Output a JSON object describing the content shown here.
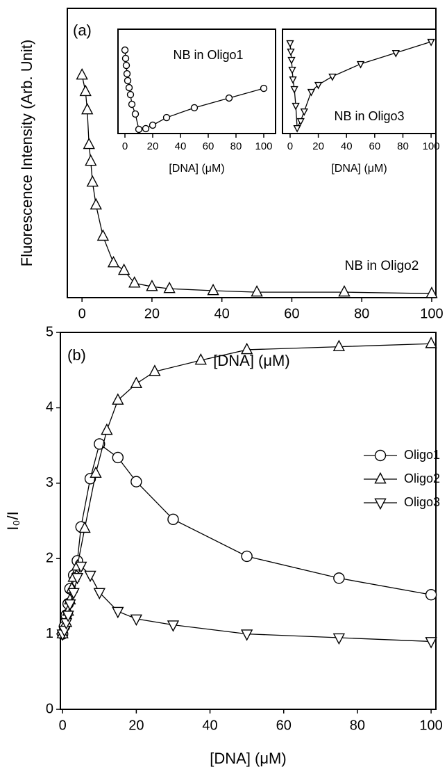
{
  "chart_data": [
    {
      "type": "line",
      "panel_label": "(a)",
      "xlabel": "[DNA] (μM)",
      "ylabel": "Fluorescence Intensity (Arb. Unit)",
      "annotation": "NB in Oligo2",
      "marker": "triangle-up",
      "color": "#000000",
      "x": [
        0,
        1,
        1.5,
        2,
        2.5,
        3,
        4,
        6,
        9,
        12,
        15,
        20,
        25,
        37.5,
        50,
        75,
        100
      ],
      "values": [
        76.9,
        71.2,
        64.9,
        52.9,
        47.1,
        39.9,
        32.0,
        21.2,
        12.0,
        9.4,
        5.0,
        3.8,
        3.1,
        2.4,
        1.9,
        1.9,
        1.4
      ],
      "xlim": [
        -4.2,
        101.2
      ],
      "xticks": [
        0,
        20,
        40,
        60,
        80,
        100
      ],
      "ylim": [
        0,
        100
      ]
    },
    {
      "type": "line",
      "xlabel": "[DNA] (μM)",
      "annotation": "NB in Oligo1",
      "marker": "circle",
      "color": "#000000",
      "x": [
        0,
        0.5,
        1,
        1.5,
        2,
        3,
        4,
        5,
        7.5,
        10,
        15,
        20,
        30,
        50,
        75,
        100
      ],
      "values": [
        80,
        72,
        65.3,
        57.3,
        50.7,
        44,
        37.3,
        28,
        18.7,
        4,
        4.7,
        8,
        15.3,
        24.7,
        34,
        43.3
      ],
      "xlim": [
        -5,
        108.5
      ],
      "xticks": [
        0,
        20,
        40,
        60,
        80,
        100
      ],
      "ylim": [
        0,
        100
      ]
    },
    {
      "type": "line",
      "xlabel": "[DNA] (μM)",
      "annotation": "NB in Oligo3",
      "marker": "triangle-down",
      "color": "#000000",
      "x": [
        0,
        0.5,
        1,
        1.5,
        2,
        3,
        4,
        5,
        7.5,
        10,
        15,
        20,
        30,
        50,
        75,
        100
      ],
      "values": [
        86.7,
        78.7,
        70.7,
        61.3,
        52,
        42.7,
        26.7,
        5.3,
        12,
        21.3,
        40,
        46.7,
        54.7,
        66.7,
        77.3,
        88
      ],
      "xlim": [
        -5.4,
        103.4
      ],
      "xticks": [
        0,
        20,
        40,
        60,
        80,
        100
      ],
      "ylim": [
        0,
        100
      ]
    },
    {
      "type": "line",
      "panel_label": "(b)",
      "xlabel": "[DNA] (μM)",
      "ylabel": "I₀/I",
      "legend": "center-right",
      "xlim": [
        -0.6,
        101.3
      ],
      "xticks": [
        0,
        20,
        40,
        60,
        80,
        100
      ],
      "ylim": [
        0,
        5
      ],
      "yticks": [
        0,
        1,
        2,
        3,
        4,
        5
      ],
      "series": [
        {
          "name": "Oligo1",
          "marker": "circle",
          "color": "#000000",
          "x": [
            0,
            0.5,
            1,
            1.5,
            2,
            3,
            4,
            5,
            7.5,
            10,
            15,
            20,
            30,
            50,
            75,
            100
          ],
          "values": [
            1.0,
            1.1,
            1.25,
            1.4,
            1.6,
            1.78,
            1.97,
            2.42,
            3.06,
            3.52,
            3.34,
            3.02,
            2.52,
            2.03,
            1.74,
            1.52
          ]
        },
        {
          "name": "Oligo2",
          "marker": "triangle-up",
          "color": "#000000",
          "x": [
            0,
            1,
            1.5,
            2,
            2.5,
            3,
            4,
            6,
            9,
            12,
            15,
            20,
            25,
            37.5,
            50,
            75,
            100
          ],
          "values": [
            1.0,
            1.15,
            1.3,
            1.45,
            1.6,
            1.75,
            1.9,
            2.4,
            3.13,
            3.7,
            4.1,
            4.32,
            4.48,
            4.63,
            4.77,
            4.81,
            4.85
          ]
        },
        {
          "name": "Oligo3",
          "marker": "triangle-down",
          "color": "#000000",
          "x": [
            0,
            0.5,
            1,
            1.5,
            2,
            3,
            4,
            5,
            7.5,
            10,
            15,
            20,
            30,
            50,
            75,
            100
          ],
          "values": [
            1.0,
            1.05,
            1.15,
            1.25,
            1.4,
            1.55,
            1.75,
            1.9,
            1.78,
            1.55,
            1.3,
            1.2,
            1.12,
            1.0,
            0.95,
            0.9
          ]
        }
      ]
    }
  ]
}
